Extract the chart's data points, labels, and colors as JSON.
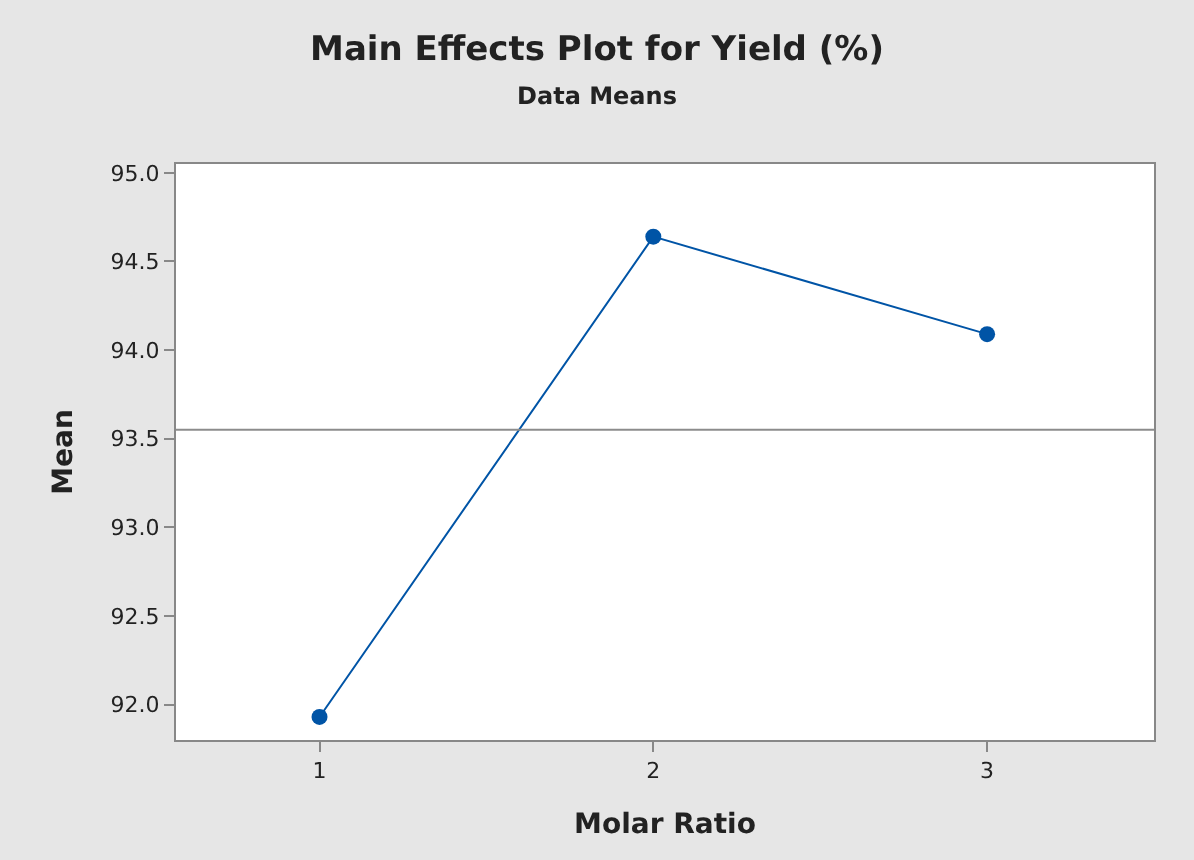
{
  "chart_data": {
    "type": "line",
    "title": "Main Effects Plot for Yield (%)",
    "subtitle": "Data Means",
    "xlabel": "Molar Ratio",
    "ylabel": "Mean",
    "categories": [
      "1",
      "2",
      "3"
    ],
    "series": [
      {
        "color": "#0054a6",
        "values": [
          91.93,
          94.64,
          94.09
        ]
      }
    ],
    "ylim": [
      91.8,
      95.05
    ],
    "yticks": [
      {
        "value": 92.0,
        "label": "92.0"
      },
      {
        "value": 92.5,
        "label": "92.5"
      },
      {
        "value": 93.0,
        "label": "93.0"
      },
      {
        "value": 93.5,
        "label": "93.5"
      },
      {
        "value": 94.0,
        "label": "94.0"
      },
      {
        "value": 94.5,
        "label": "94.5"
      },
      {
        "value": 95.0,
        "label": "95.0"
      }
    ],
    "ref_lines": [
      {
        "axis": "y",
        "value": 93.55,
        "color": "#8c8c8c"
      }
    ],
    "marker": "circle",
    "line_style": "solid"
  }
}
